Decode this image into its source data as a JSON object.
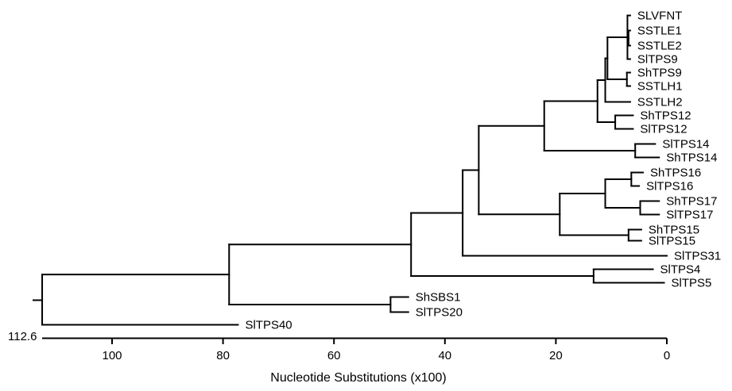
{
  "tree": {
    "root_label": "112.6",
    "axis_title": "Nucleotide Substitutions (x100)",
    "axis_range": [
      0,
      112.6
    ],
    "axis_ticks": [
      "100",
      "80",
      "60",
      "40",
      "20",
      "0"
    ],
    "axis_tick_values": [
      100,
      80,
      60,
      40,
      20,
      0
    ],
    "leaves": [
      "SLVFNT",
      "SSTLE1",
      "SSTLE2",
      "SlTPS9",
      "ShTPS9",
      "SSTLH1",
      "SSTLH2",
      "ShTPS12",
      "SlTPS12",
      "SlTPS14",
      "ShTPS14",
      "ShTPS16",
      "SlTPS16",
      "ShTPS17",
      "SlTPS17",
      "ShTPS15",
      "SlTPS15",
      "SlTPS31",
      "SlTPS4",
      "SlTPS5",
      "ShSBS1",
      "SlTPS20",
      "SlTPS40"
    ],
    "leaf_distances": [
      6.6,
      6.6,
      6.6,
      6.6,
      6.6,
      6.6,
      6.6,
      6.1,
      6.1,
      2.1,
      1.4,
      4.3,
      5.0,
      1.4,
      1.4,
      4.6,
      4.6,
      0,
      2.5,
      0.5,
      46.6,
      46.6,
      77.3
    ],
    "nodes": {
      "n_le": 6.9,
      "n_le9": 7.1,
      "n_h": 7.2,
      "n_le9h": 10.7,
      "n_a": 11.1,
      "n_12": 9.3,
      "n_b": 12.5,
      "n_14": 5.7,
      "n_c": 22.1,
      "n_16": 6.4,
      "n_17": 4.8,
      "n_e": 11.1,
      "n_15": 6.9,
      "n_f": 19.3,
      "n_g": 33.9,
      "n_h2": 36.8,
      "n_45": 13.2,
      "n_i": 46.1,
      "n_sbs": 49.8,
      "n_j": 78.9,
      "root": 112.6
    }
  }
}
